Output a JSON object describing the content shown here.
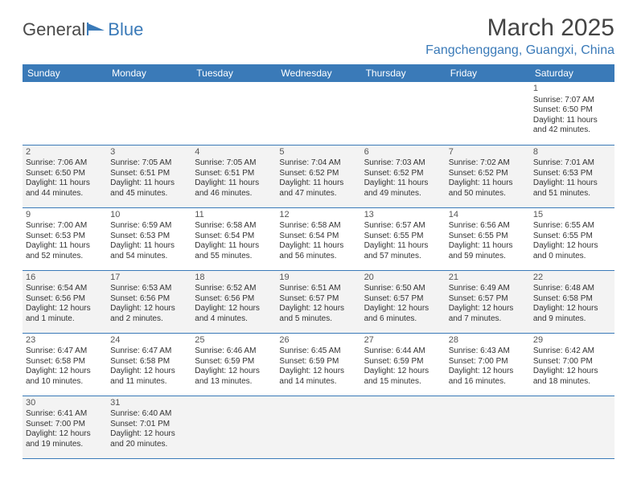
{
  "brand": {
    "part1": "General",
    "part2": "Blue"
  },
  "title": "March 2025",
  "location": "Fangchenggang, Guangxi, China",
  "colors": {
    "accent": "#3a7ab8",
    "header_text": "#ffffff",
    "alt_row": "#f3f3f3",
    "text": "#333333"
  },
  "weekdays": [
    "Sunday",
    "Monday",
    "Tuesday",
    "Wednesday",
    "Thursday",
    "Friday",
    "Saturday"
  ],
  "weeks": [
    [
      null,
      null,
      null,
      null,
      null,
      null,
      {
        "d": "1",
        "sr": "Sunrise: 7:07 AM",
        "ss": "Sunset: 6:50 PM",
        "dl1": "Daylight: 11 hours",
        "dl2": "and 42 minutes."
      }
    ],
    [
      {
        "d": "2",
        "sr": "Sunrise: 7:06 AM",
        "ss": "Sunset: 6:50 PM",
        "dl1": "Daylight: 11 hours",
        "dl2": "and 44 minutes."
      },
      {
        "d": "3",
        "sr": "Sunrise: 7:05 AM",
        "ss": "Sunset: 6:51 PM",
        "dl1": "Daylight: 11 hours",
        "dl2": "and 45 minutes."
      },
      {
        "d": "4",
        "sr": "Sunrise: 7:05 AM",
        "ss": "Sunset: 6:51 PM",
        "dl1": "Daylight: 11 hours",
        "dl2": "and 46 minutes."
      },
      {
        "d": "5",
        "sr": "Sunrise: 7:04 AM",
        "ss": "Sunset: 6:52 PM",
        "dl1": "Daylight: 11 hours",
        "dl2": "and 47 minutes."
      },
      {
        "d": "6",
        "sr": "Sunrise: 7:03 AM",
        "ss": "Sunset: 6:52 PM",
        "dl1": "Daylight: 11 hours",
        "dl2": "and 49 minutes."
      },
      {
        "d": "7",
        "sr": "Sunrise: 7:02 AM",
        "ss": "Sunset: 6:52 PM",
        "dl1": "Daylight: 11 hours",
        "dl2": "and 50 minutes."
      },
      {
        "d": "8",
        "sr": "Sunrise: 7:01 AM",
        "ss": "Sunset: 6:53 PM",
        "dl1": "Daylight: 11 hours",
        "dl2": "and 51 minutes."
      }
    ],
    [
      {
        "d": "9",
        "sr": "Sunrise: 7:00 AM",
        "ss": "Sunset: 6:53 PM",
        "dl1": "Daylight: 11 hours",
        "dl2": "and 52 minutes."
      },
      {
        "d": "10",
        "sr": "Sunrise: 6:59 AM",
        "ss": "Sunset: 6:53 PM",
        "dl1": "Daylight: 11 hours",
        "dl2": "and 54 minutes."
      },
      {
        "d": "11",
        "sr": "Sunrise: 6:58 AM",
        "ss": "Sunset: 6:54 PM",
        "dl1": "Daylight: 11 hours",
        "dl2": "and 55 minutes."
      },
      {
        "d": "12",
        "sr": "Sunrise: 6:58 AM",
        "ss": "Sunset: 6:54 PM",
        "dl1": "Daylight: 11 hours",
        "dl2": "and 56 minutes."
      },
      {
        "d": "13",
        "sr": "Sunrise: 6:57 AM",
        "ss": "Sunset: 6:55 PM",
        "dl1": "Daylight: 11 hours",
        "dl2": "and 57 minutes."
      },
      {
        "d": "14",
        "sr": "Sunrise: 6:56 AM",
        "ss": "Sunset: 6:55 PM",
        "dl1": "Daylight: 11 hours",
        "dl2": "and 59 minutes."
      },
      {
        "d": "15",
        "sr": "Sunrise: 6:55 AM",
        "ss": "Sunset: 6:55 PM",
        "dl1": "Daylight: 12 hours",
        "dl2": "and 0 minutes."
      }
    ],
    [
      {
        "d": "16",
        "sr": "Sunrise: 6:54 AM",
        "ss": "Sunset: 6:56 PM",
        "dl1": "Daylight: 12 hours",
        "dl2": "and 1 minute."
      },
      {
        "d": "17",
        "sr": "Sunrise: 6:53 AM",
        "ss": "Sunset: 6:56 PM",
        "dl1": "Daylight: 12 hours",
        "dl2": "and 2 minutes."
      },
      {
        "d": "18",
        "sr": "Sunrise: 6:52 AM",
        "ss": "Sunset: 6:56 PM",
        "dl1": "Daylight: 12 hours",
        "dl2": "and 4 minutes."
      },
      {
        "d": "19",
        "sr": "Sunrise: 6:51 AM",
        "ss": "Sunset: 6:57 PM",
        "dl1": "Daylight: 12 hours",
        "dl2": "and 5 minutes."
      },
      {
        "d": "20",
        "sr": "Sunrise: 6:50 AM",
        "ss": "Sunset: 6:57 PM",
        "dl1": "Daylight: 12 hours",
        "dl2": "and 6 minutes."
      },
      {
        "d": "21",
        "sr": "Sunrise: 6:49 AM",
        "ss": "Sunset: 6:57 PM",
        "dl1": "Daylight: 12 hours",
        "dl2": "and 7 minutes."
      },
      {
        "d": "22",
        "sr": "Sunrise: 6:48 AM",
        "ss": "Sunset: 6:58 PM",
        "dl1": "Daylight: 12 hours",
        "dl2": "and 9 minutes."
      }
    ],
    [
      {
        "d": "23",
        "sr": "Sunrise: 6:47 AM",
        "ss": "Sunset: 6:58 PM",
        "dl1": "Daylight: 12 hours",
        "dl2": "and 10 minutes."
      },
      {
        "d": "24",
        "sr": "Sunrise: 6:47 AM",
        "ss": "Sunset: 6:58 PM",
        "dl1": "Daylight: 12 hours",
        "dl2": "and 11 minutes."
      },
      {
        "d": "25",
        "sr": "Sunrise: 6:46 AM",
        "ss": "Sunset: 6:59 PM",
        "dl1": "Daylight: 12 hours",
        "dl2": "and 13 minutes."
      },
      {
        "d": "26",
        "sr": "Sunrise: 6:45 AM",
        "ss": "Sunset: 6:59 PM",
        "dl1": "Daylight: 12 hours",
        "dl2": "and 14 minutes."
      },
      {
        "d": "27",
        "sr": "Sunrise: 6:44 AM",
        "ss": "Sunset: 6:59 PM",
        "dl1": "Daylight: 12 hours",
        "dl2": "and 15 minutes."
      },
      {
        "d": "28",
        "sr": "Sunrise: 6:43 AM",
        "ss": "Sunset: 7:00 PM",
        "dl1": "Daylight: 12 hours",
        "dl2": "and 16 minutes."
      },
      {
        "d": "29",
        "sr": "Sunrise: 6:42 AM",
        "ss": "Sunset: 7:00 PM",
        "dl1": "Daylight: 12 hours",
        "dl2": "and 18 minutes."
      }
    ],
    [
      {
        "d": "30",
        "sr": "Sunrise: 6:41 AM",
        "ss": "Sunset: 7:00 PM",
        "dl1": "Daylight: 12 hours",
        "dl2": "and 19 minutes."
      },
      {
        "d": "31",
        "sr": "Sunrise: 6:40 AM",
        "ss": "Sunset: 7:01 PM",
        "dl1": "Daylight: 12 hours",
        "dl2": "and 20 minutes."
      },
      null,
      null,
      null,
      null,
      null
    ]
  ]
}
